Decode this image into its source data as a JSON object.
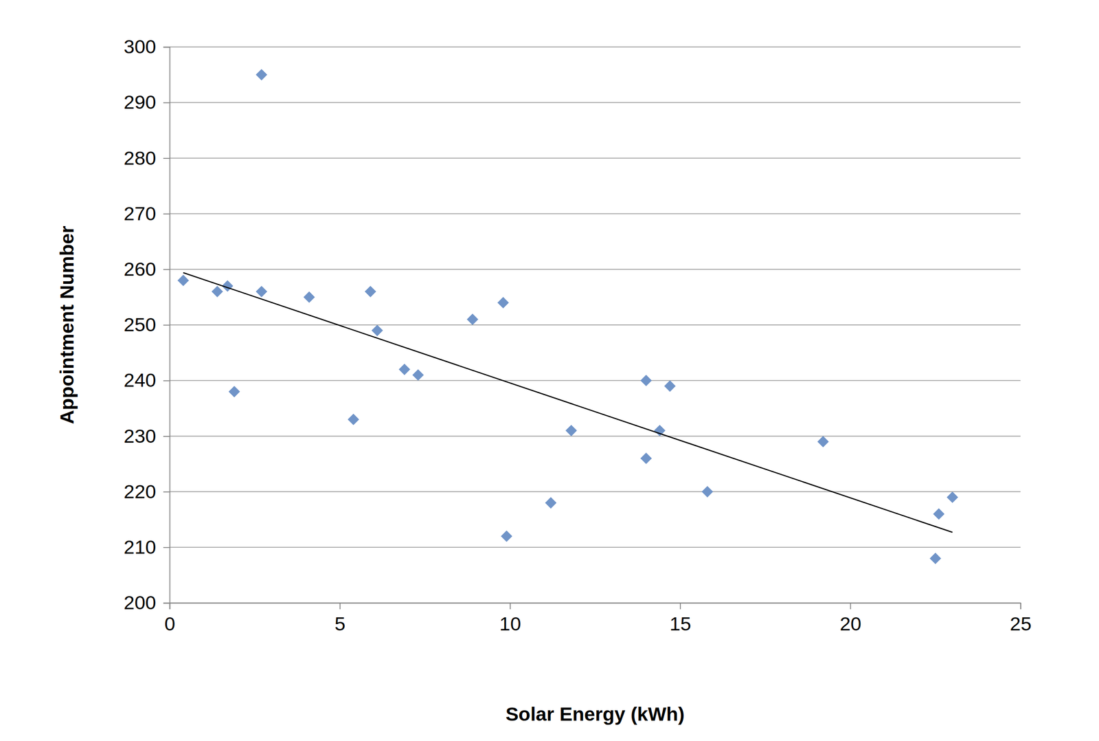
{
  "chart_data": {
    "type": "scatter",
    "x_label": "Solar Energy (kWh)",
    "y_label": "Appointment Number",
    "xlim": [
      0,
      25
    ],
    "xticks": [
      0,
      5,
      10,
      15,
      20,
      25
    ],
    "ylim": [
      200,
      300
    ],
    "yticks": [
      200,
      210,
      220,
      230,
      240,
      250,
      260,
      270,
      280,
      290,
      300
    ],
    "grid": "y",
    "series": [
      {
        "type": "scatter",
        "marker": "diamond",
        "color": "#7094c8",
        "x": [
          0.4,
          1.4,
          1.7,
          1.9,
          2.7,
          2.7,
          4.1,
          5.4,
          5.9,
          6.1,
          6.9,
          7.3,
          8.9,
          9.8,
          9.9,
          11.2,
          11.8,
          14.0,
          14.0,
          14.4,
          14.7,
          15.8,
          19.2,
          22.5,
          22.6,
          23.0
        ],
        "values": [
          258,
          256,
          257,
          238,
          295,
          256,
          255,
          233,
          256,
          249,
          242,
          241,
          251,
          254,
          212,
          218,
          231,
          240,
          226,
          231,
          239,
          220,
          229,
          208,
          216,
          219
        ]
      },
      {
        "type": "line",
        "line_style": "solid",
        "color": "#000000",
        "x": [
          0.4,
          23.0
        ],
        "values": [
          259.4,
          212.7
        ]
      }
    ]
  }
}
